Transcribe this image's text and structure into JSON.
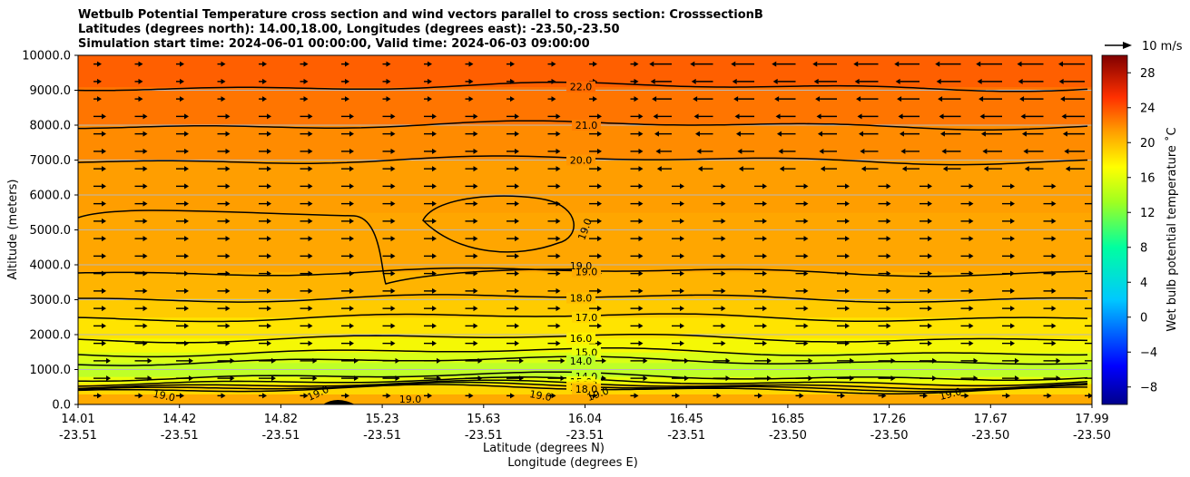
{
  "chart_data": {
    "type": "heatmap",
    "title_lines": [
      "Wetbulb Potential Temperature cross section and wind vectors parallel to cross section: CrosssectionB",
      "Latitudes (degrees north): 14.00,18.00, Longitudes (degrees east): -23.50,-23.50",
      "Simulation start time: 2024-06-01 00:00:00, Valid time: 2024-06-03 09:00:00"
    ],
    "ylabel": "Altitude (meters)",
    "xlabel_lat": "Latitude (degrees N)",
    "xlabel_lon": "Longitude (degrees E)",
    "ylim": [
      0,
      10000
    ],
    "y_ticks": [
      "0.0",
      "1000.0",
      "2000.0",
      "3000.0",
      "4000.0",
      "5000.0",
      "6000.0",
      "7000.0",
      "8000.0",
      "9000.0",
      "10000.0"
    ],
    "x_ticks": [
      {
        "lat": "14.01",
        "lon": "-23.51"
      },
      {
        "lat": "14.42",
        "lon": "-23.51"
      },
      {
        "lat": "14.82",
        "lon": "-23.51"
      },
      {
        "lat": "15.23",
        "lon": "-23.51"
      },
      {
        "lat": "15.63",
        "lon": "-23.51"
      },
      {
        "lat": "16.04",
        "lon": "-23.51"
      },
      {
        "lat": "16.45",
        "lon": "-23.51"
      },
      {
        "lat": "16.85",
        "lon": "-23.50"
      },
      {
        "lat": "17.26",
        "lon": "-23.50"
      },
      {
        "lat": "17.67",
        "lon": "-23.50"
      },
      {
        "lat": "17.99",
        "lon": "-23.50"
      }
    ],
    "colorbar": {
      "label": "Wet bulb potential temperature ˚C",
      "min": -10,
      "max": 30,
      "ticks": [
        "−8",
        "−4",
        "0",
        "4",
        "8",
        "12",
        "16",
        "20",
        "24",
        "28"
      ]
    },
    "wind_key": {
      "label": "10 m/s"
    },
    "contour_levels": [
      {
        "value": 22.0,
        "label": "22.0",
        "altitude": 9100
      },
      {
        "value": 21.0,
        "label": "21.0",
        "altitude": 8000
      },
      {
        "value": 20.0,
        "label": "20.0",
        "altitude": 7000
      },
      {
        "value": 19.0,
        "label": "19.0",
        "altitude": 3800
      },
      {
        "value": 18.0,
        "label": "18.0",
        "altitude": 3050
      },
      {
        "value": 17.0,
        "label": "17.0",
        "altitude": 2500
      },
      {
        "value": 16.0,
        "label": "16.0",
        "altitude": 1900
      },
      {
        "value": 15.0,
        "label": "15.0",
        "altitude": 1500
      },
      {
        "value": 14.0,
        "label": "14.0",
        "altitude": 1250
      },
      {
        "value": 14.0,
        "label": "14.0",
        "altitude": 800
      },
      {
        "value": 15.0,
        "label": "15.0",
        "altitude": 650
      },
      {
        "value": 16.0,
        "label": "16.0",
        "altitude": 560
      },
      {
        "value": 17.0,
        "label": "17.0",
        "altitude": 500
      },
      {
        "value": 18.0,
        "label": "18.0",
        "altitude": 440
      }
    ],
    "extra_contour_labels": [
      "19.0",
      "19.0",
      "19.0",
      "19.0",
      "19.0",
      "19.0",
      "19.0",
      "19.0"
    ],
    "field_bands": [
      {
        "z0": 0,
        "z1": 300,
        "temp": 19.0
      },
      {
        "z0": 300,
        "z1": 600,
        "temp": 17.0
      },
      {
        "z0": 600,
        "z1": 800,
        "temp": 15.0
      },
      {
        "z0": 800,
        "z1": 1200,
        "temp": 14.0
      },
      {
        "z0": 1200,
        "z1": 1500,
        "temp": 14.6
      },
      {
        "z0": 1500,
        "z1": 1900,
        "temp": 15.5
      },
      {
        "z0": 1900,
        "z1": 2500,
        "temp": 16.5
      },
      {
        "z0": 2500,
        "z1": 3050,
        "temp": 17.5
      },
      {
        "z0": 3050,
        "z1": 3800,
        "temp": 18.5
      },
      {
        "z0": 3800,
        "z1": 5500,
        "temp": 19.2
      },
      {
        "z0": 5500,
        "z1": 7000,
        "temp": 19.6
      },
      {
        "z0": 7000,
        "z1": 8000,
        "temp": 20.5
      },
      {
        "z0": 8000,
        "z1": 9100,
        "temp": 21.5
      },
      {
        "z0": 9100,
        "z1": 10000,
        "temp": 22.5
      }
    ]
  }
}
